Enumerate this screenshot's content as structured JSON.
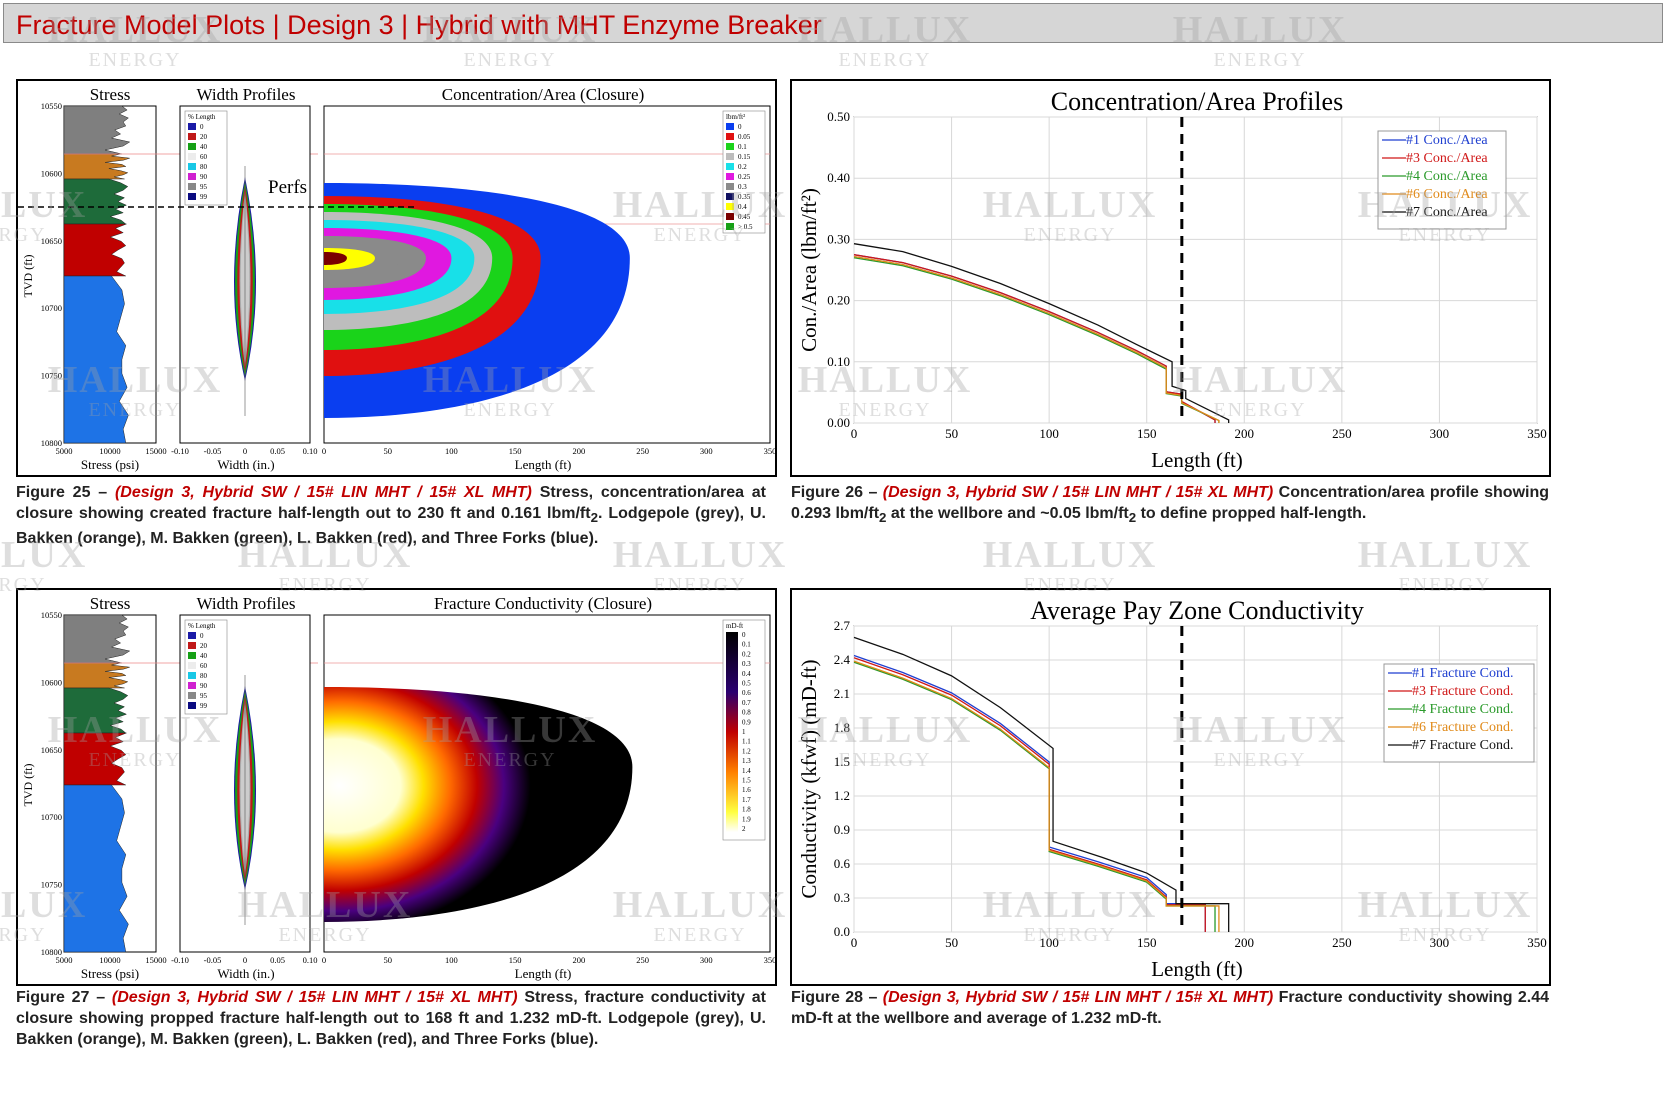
{
  "header": {
    "title": "Fracture Model Plots | Design 3 | Hybrid with MHT Enzyme Breaker"
  },
  "watermark": {
    "name": "HALLUX",
    "sub": "ENERGY"
  },
  "colors": {
    "title_red": "#c00000",
    "lodgepole": "#7f7f7f",
    "upper_bakken": "#c87a20",
    "middle_bakken": "#1e6b3a",
    "lower_bakken": "#c00000",
    "three_forks": "#1e73e6"
  },
  "fig25": {
    "stress_title": "Stress",
    "width_title": "Width Profiles",
    "main_title": "Concentration/Area (Closure)",
    "ylabel": "TVD (ft)",
    "depth_ticks": [
      "10550",
      "10600",
      "10650",
      "10700",
      "10750",
      "10800"
    ],
    "stress_ticks": [
      "5000",
      "10000",
      "15000"
    ],
    "stress_xlabel": "Stress (psi)",
    "width_ticks": [
      "-0.10",
      "-0.05",
      "0",
      "0.05",
      "0.10"
    ],
    "width_xlabel": "Width (in.)",
    "length_ticks": [
      "0",
      "50",
      "100",
      "150",
      "200",
      "250",
      "300",
      "350"
    ],
    "length_xlabel": "Length (ft)",
    "perfs_label": "Perfs",
    "pct_legend": {
      "title": "% Length",
      "items": [
        "0",
        "20",
        "40",
        "60",
        "80",
        "90",
        "95",
        "99"
      ]
    },
    "conc_legend": {
      "title": "lbm/ft²",
      "items": [
        "0",
        "0.05",
        "0.1",
        "0.15",
        "0.2",
        "0.25",
        "0.3",
        "0.35",
        "0.4",
        "0.45",
        "> 0.5"
      ]
    }
  },
  "fig27": {
    "stress_title": "Stress",
    "width_title": "Width Profiles",
    "main_title": "Fracture Conductivity (Closure)",
    "ylabel": "TVD (ft)",
    "depth_ticks": [
      "10550",
      "10600",
      "10650",
      "10700",
      "10750",
      "10800"
    ],
    "stress_ticks": [
      "5000",
      "10000",
      "15000"
    ],
    "stress_xlabel": "Stress (psi)",
    "width_ticks": [
      "-0.10",
      "-0.05",
      "0",
      "0.05",
      "0.10"
    ],
    "width_xlabel": "Width (in.)",
    "length_ticks": [
      "0",
      "50",
      "100",
      "150",
      "200",
      "250",
      "300",
      "350"
    ],
    "length_xlabel": "Length (ft)",
    "pct_legend": {
      "title": "% Length",
      "items": [
        "0",
        "20",
        "40",
        "60",
        "80",
        "90",
        "95",
        "99"
      ]
    },
    "cond_legend": {
      "title": "mD-ft",
      "items": [
        "0",
        "0.1",
        "0.2",
        "0.3",
        "0.4",
        "0.5",
        "0.6",
        "0.7",
        "0.8",
        "0.9",
        "1",
        "1.1",
        "1.2",
        "1.3",
        "1.4",
        "1.5",
        "1.6",
        "1.7",
        "1.8",
        "1.9",
        "2"
      ]
    }
  },
  "captions": {
    "fig25": {
      "label": "Figure 25 –",
      "design": "(Design 3, Hybrid SW / 15# LIN MHT / 15# XL MHT)",
      "text": "Stress, concentration/area at closure showing created fracture half-length out to 230 ft and 0.161 lbm/ft",
      "sub": "2",
      "tail": ".  Lodgepole (grey), U. Bakken (orange), M. Bakken (green), L. Bakken (red), and Three Forks (blue)."
    },
    "fig26": {
      "label": "Figure 26 –",
      "design": "(Design 3, Hybrid SW / 15# LIN MHT / 15# XL MHT)",
      "text": "Concentration/area profile showing 0.293 lbm/ft",
      "sub": "2",
      "text2": " at the wellbore and ~0.05 lbm/ft",
      "sub2": "2",
      "tail": " to define propped half-length."
    },
    "fig27": {
      "label": "Figure 27 –",
      "design": "(Design 3, Hybrid SW / 15# LIN MHT / 15# XL MHT)",
      "text": "Stress, fracture conductivity at closure showing propped fracture half-length out to 168 ft and 1.232 mD-ft.  Lodgepole (grey), U. Bakken (orange), M. Bakken (green), L. Bakken (red), and Three Forks (blue)."
    },
    "fig28": {
      "label": "Figure 28 –",
      "design": "(Design 3, Hybrid SW / 15# LIN MHT / 15# XL MHT)",
      "text": "Fracture conductivity showing 2.44 mD-ft at the wellbore and average of 1.232 mD-ft."
    }
  },
  "chart_data": [
    {
      "id": "fig26",
      "type": "line",
      "title": "Concentration/Area Profiles",
      "xlabel": "Length (ft)",
      "ylabel": "Con./Area (lbm/ft²)",
      "xlim": [
        0,
        350
      ],
      "ylim": [
        0,
        0.5
      ],
      "x_ticks": [
        0,
        50,
        100,
        150,
        200,
        250,
        300,
        350
      ],
      "y_ticks": [
        0,
        0.1,
        0.2,
        0.3,
        0.4,
        0.5
      ],
      "y_tick_labels": [
        "0.00",
        "0.10",
        "0.20",
        "0.30",
        "0.40",
        "0.50"
      ],
      "vline_x": 168,
      "legend_position": "top-right",
      "series": [
        {
          "name": "#1 Conc./Area",
          "color": "#1f3fd0",
          "x": [
            0,
            25,
            50,
            75,
            100,
            125,
            145,
            160,
            160,
            168,
            168,
            185,
            185
          ],
          "y": [
            0.275,
            0.262,
            0.24,
            0.213,
            0.182,
            0.148,
            0.118,
            0.093,
            0.051,
            0.047,
            0.035,
            0.005,
            0
          ]
        },
        {
          "name": "#3 Conc./Area",
          "color": "#d01818",
          "x": [
            0,
            25,
            50,
            75,
            100,
            125,
            145,
            160,
            160,
            168,
            168,
            185,
            185
          ],
          "y": [
            0.275,
            0.262,
            0.24,
            0.213,
            0.182,
            0.148,
            0.118,
            0.093,
            0.051,
            0.047,
            0.035,
            0.005,
            0
          ]
        },
        {
          "name": "#4 Conc./Area",
          "color": "#2a9a2a",
          "x": [
            0,
            25,
            50,
            75,
            100,
            125,
            145,
            160,
            160,
            168,
            168,
            187,
            187
          ],
          "y": [
            0.27,
            0.257,
            0.235,
            0.208,
            0.177,
            0.143,
            0.113,
            0.088,
            0.048,
            0.044,
            0.032,
            0.004,
            0
          ]
        },
        {
          "name": "#6 Conc./Area",
          "color": "#e08a1a",
          "x": [
            0,
            25,
            50,
            75,
            100,
            125,
            145,
            160,
            160,
            168,
            168,
            187,
            187
          ],
          "y": [
            0.272,
            0.259,
            0.237,
            0.21,
            0.179,
            0.145,
            0.115,
            0.09,
            0.049,
            0.045,
            0.033,
            0.004,
            0
          ]
        },
        {
          "name": "#7 Conc./Area",
          "color": "#111111",
          "x": [
            0,
            25,
            50,
            75,
            100,
            125,
            145,
            163,
            163,
            170,
            170,
            192,
            192
          ],
          "y": [
            0.293,
            0.28,
            0.256,
            0.228,
            0.195,
            0.16,
            0.128,
            0.1,
            0.06,
            0.053,
            0.04,
            0.005,
            0
          ]
        }
      ]
    },
    {
      "id": "fig28",
      "type": "line",
      "title": "Average Pay Zone Conductivity",
      "xlabel": "Length (ft)",
      "ylabel": "Conductivity (kfwf) (mD-ft)",
      "xlim": [
        0,
        350
      ],
      "ylim": [
        0,
        2.7
      ],
      "x_ticks": [
        0,
        50,
        100,
        150,
        200,
        250,
        300,
        350
      ],
      "y_ticks": [
        0,
        0.3,
        0.6,
        0.9,
        1.2,
        1.5,
        1.8,
        2.1,
        2.4,
        2.7
      ],
      "y_tick_labels": [
        "0.0",
        "0.3",
        "0.6",
        "0.9",
        "1.2",
        "1.5",
        "1.8",
        "2.1",
        "2.4",
        "2.7"
      ],
      "vline_x": 168,
      "legend_position": "right",
      "series": [
        {
          "name": "#1 Fracture Cond.",
          "color": "#1f3fd0",
          "x": [
            0,
            25,
            50,
            75,
            100,
            100,
            125,
            150,
            160,
            160,
            180,
            180
          ],
          "y": [
            2.44,
            2.29,
            2.11,
            1.84,
            1.5,
            0.75,
            0.62,
            0.48,
            0.33,
            0.25,
            0.25,
            0
          ]
        },
        {
          "name": "#3 Fracture Cond.",
          "color": "#d01818",
          "x": [
            0,
            25,
            50,
            75,
            100,
            100,
            125,
            150,
            160,
            160,
            180,
            180
          ],
          "y": [
            2.42,
            2.27,
            2.09,
            1.82,
            1.48,
            0.73,
            0.6,
            0.46,
            0.31,
            0.24,
            0.24,
            0
          ]
        },
        {
          "name": "#4 Fracture Cond.",
          "color": "#2a9a2a",
          "x": [
            0,
            25,
            50,
            75,
            100,
            100,
            125,
            150,
            160,
            160,
            185,
            185
          ],
          "y": [
            2.38,
            2.23,
            2.05,
            1.78,
            1.44,
            0.71,
            0.58,
            0.44,
            0.29,
            0.23,
            0.23,
            0
          ]
        },
        {
          "name": "#6 Fracture Cond.",
          "color": "#e08a1a",
          "x": [
            0,
            25,
            50,
            75,
            100,
            100,
            125,
            150,
            160,
            160,
            187,
            187
          ],
          "y": [
            2.39,
            2.24,
            2.06,
            1.79,
            1.45,
            0.72,
            0.59,
            0.45,
            0.3,
            0.23,
            0.23,
            0
          ]
        },
        {
          "name": "#7 Fracture Cond.",
          "color": "#111111",
          "x": [
            0,
            25,
            50,
            75,
            102,
            102,
            127,
            150,
            165,
            165,
            192,
            192
          ],
          "y": [
            2.6,
            2.45,
            2.26,
            1.98,
            1.62,
            0.8,
            0.66,
            0.52,
            0.37,
            0.25,
            0.25,
            0
          ]
        }
      ]
    }
  ]
}
